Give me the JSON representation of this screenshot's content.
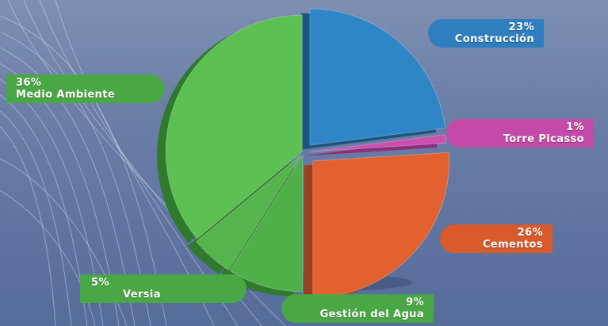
{
  "chart_data": {
    "type": "pie",
    "slices": [
      {
        "label": "Construcción",
        "value": 23,
        "value_text": "23%",
        "color": "#2f86c6",
        "side": "#1c5680"
      },
      {
        "label": "Torre Picasso",
        "value": 1,
        "value_text": "1%",
        "color": "#cc4fb0",
        "side": "#8e2f7a"
      },
      {
        "label": "Cementos",
        "value": 26,
        "value_text": "26%",
        "color": "#e2612f",
        "side": "#9d3f1c"
      },
      {
        "label": "Gestión del Agua",
        "value": 9,
        "value_text": "9%",
        "color": "#4fb04a",
        "side": "#2f7a2c"
      },
      {
        "label": "Versia",
        "value": 5,
        "value_text": "5%",
        "color": "#55b44e",
        "side": "#2f7a2c"
      },
      {
        "label": "Medio Ambiente",
        "value": 36,
        "value_text": "36%",
        "color": "#5cc052",
        "side": "#2f7a2c"
      }
    ]
  }
}
